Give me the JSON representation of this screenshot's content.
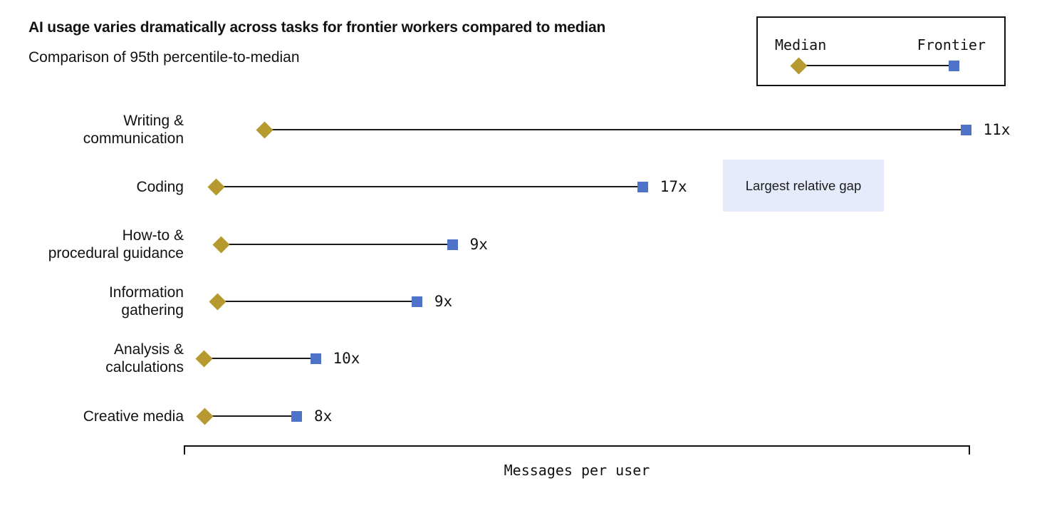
{
  "header": {
    "title": "AI usage varies dramatically across tasks for frontier workers compared to median",
    "subtitle": "Comparison of 95th percentile-to-median"
  },
  "legend": {
    "median_label": "Median",
    "frontier_label": "Frontier"
  },
  "annotation": {
    "text": "Largest relative gap"
  },
  "axis": {
    "label": "Messages per user"
  },
  "colors": {
    "median": "#b79a2f",
    "frontier": "#4f73c8",
    "line": "#1a1a1a",
    "annotation_bg": "#e5ebfa",
    "text": "#121212"
  },
  "chart_data": {
    "type": "dumbbell",
    "title": "AI usage varies dramatically across tasks for frontier workers compared to median",
    "subtitle": "Comparison of 95th percentile-to-median",
    "xlabel": "Messages per user",
    "x_axis_ticks": [],
    "grid": false,
    "legend_position": "top-right",
    "categories": [
      "Writing &\ncommunication",
      "Coding",
      "How-to &\nprocedural guidance",
      "Information\ngathering",
      "Analysis &\ncalculations",
      "Creative media"
    ],
    "series": [
      {
        "name": "Median",
        "marker": "diamond",
        "axis_fraction": [
          0.103,
          0.041,
          0.048,
          0.043,
          0.026,
          0.027
        ]
      },
      {
        "name": "Frontier",
        "marker": "square",
        "axis_fraction": [
          0.995,
          0.584,
          0.342,
          0.297,
          0.168,
          0.144
        ]
      }
    ],
    "ratio_labels": [
      "11x",
      "17x",
      "9x",
      "9x",
      "10x",
      "8x"
    ],
    "annotations": [
      {
        "text": "Largest relative gap",
        "attached_to": "Coding"
      }
    ]
  }
}
